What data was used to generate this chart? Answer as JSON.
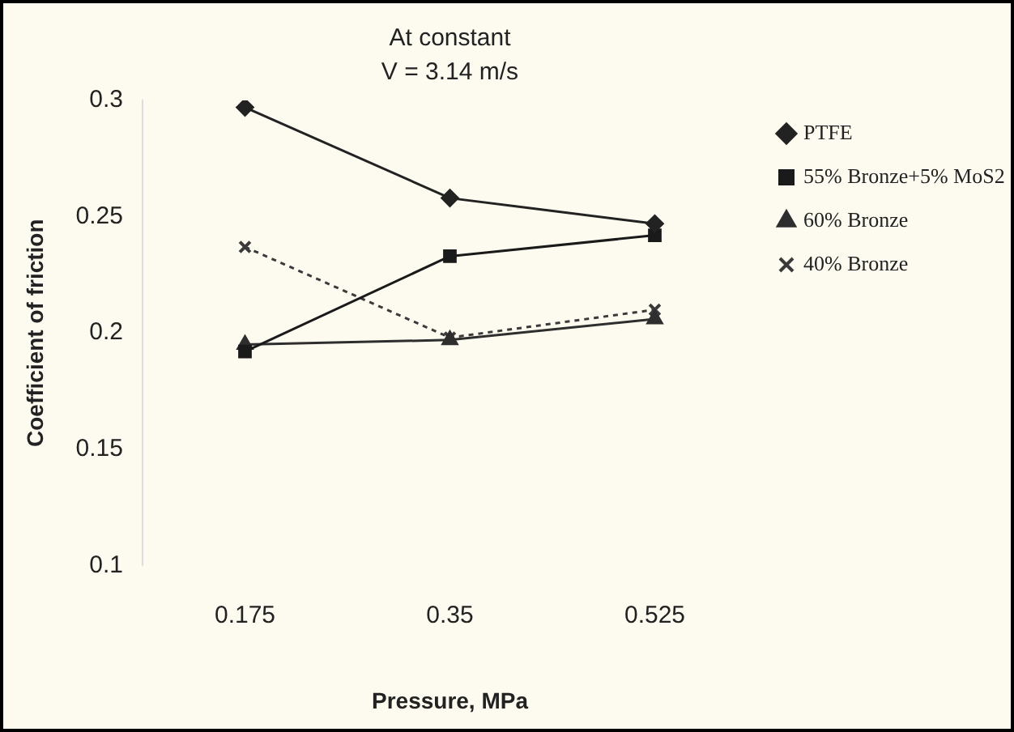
{
  "chart_data": {
    "type": "line",
    "categories": [
      "0.175",
      "0.35",
      "0.525"
    ],
    "series": [
      {
        "name": "PTFE",
        "color": "#222222",
        "values": [
          0.297,
          0.258,
          0.247
        ],
        "marker": "diamond",
        "line_style": "solid"
      },
      {
        "name": "55% Bronze+5% MoS2",
        "color": "#1a1a1a",
        "values": [
          0.192,
          0.233,
          0.242
        ],
        "marker": "square",
        "line_style": "solid"
      },
      {
        "name": "60% Bronze",
        "color": "#2e2e2e",
        "values": [
          0.195,
          0.197,
          0.206
        ],
        "marker": "triangle",
        "line_style": "solid"
      },
      {
        "name": "40% Bronze",
        "color": "#3a3a3a",
        "values": [
          0.237,
          0.198,
          0.21
        ],
        "marker": "cross",
        "line_style": "dotted"
      }
    ],
    "xlabel": "Pressure, MPa",
    "ylabel": "Coefficient of friction",
    "ylim": [
      0.1,
      0.3
    ],
    "yticks": [
      0.1,
      0.15,
      0.2,
      0.25,
      0.3
    ],
    "annotations": [
      "At constant",
      "V = 3.14 m/s"
    ],
    "legend": "top right",
    "grid": false
  }
}
